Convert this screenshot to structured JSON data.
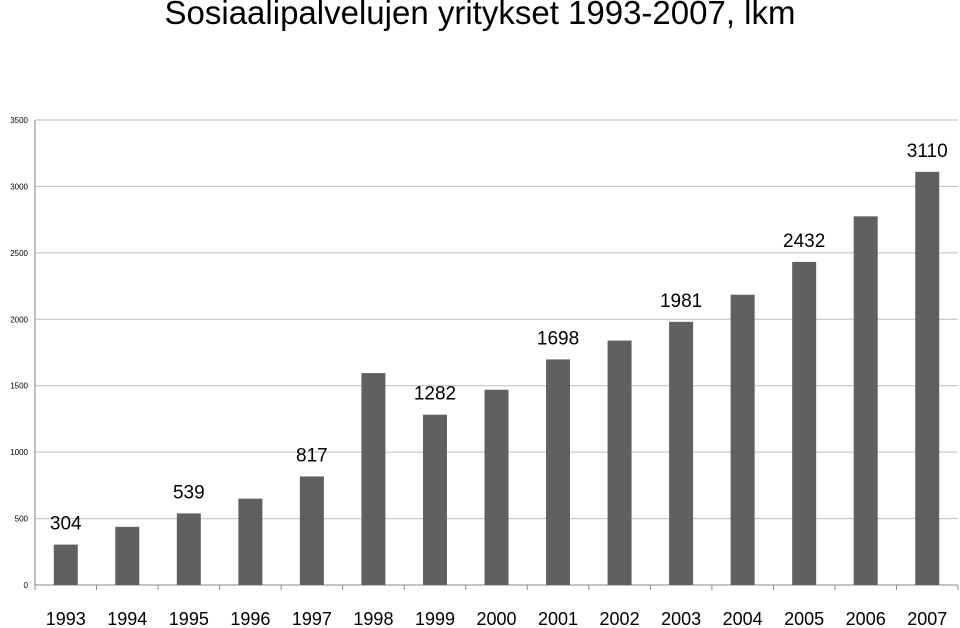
{
  "chart_data": {
    "type": "bar",
    "title": "Sosiaalipalvelujen yritykset 1993-2007, lkm",
    "xlabel": "",
    "ylabel": "",
    "categories": [
      "1993",
      "1994",
      "1995",
      "1996",
      "1997",
      "1998",
      "1999",
      "2000",
      "2001",
      "2002",
      "2003",
      "2004",
      "2005",
      "2006",
      "2007"
    ],
    "values": [
      304,
      438,
      539,
      650,
      817,
      1595,
      1282,
      1470,
      1698,
      1840,
      1981,
      2185,
      2432,
      2775,
      3110
    ],
    "data_labels": [
      "304",
      "",
      "539",
      "",
      "817",
      "",
      "1282",
      "",
      "1698",
      "",
      "1981",
      "",
      "2432",
      "",
      "3110"
    ],
    "ylim": [
      0,
      3500
    ],
    "yticks": [
      0,
      500,
      1000,
      1500,
      2000,
      2500,
      3000,
      3500
    ],
    "grid": true,
    "legend": "none",
    "bar_color": "#606060",
    "grid_color": "#bdbdbd"
  }
}
